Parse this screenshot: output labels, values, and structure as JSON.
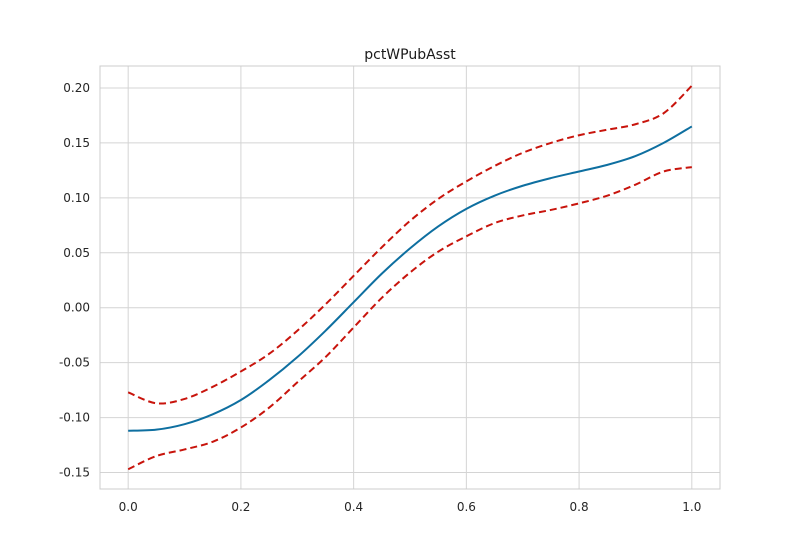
{
  "chart_data": {
    "type": "line",
    "title": "pctWPubAsst",
    "xlabel": "",
    "ylabel": "",
    "xlim": [
      -0.05,
      1.05
    ],
    "ylim": [
      -0.165,
      0.22
    ],
    "grid": true,
    "x_ticks": [
      "0.0",
      "0.2",
      "0.4",
      "0.6",
      "0.8",
      "1.0"
    ],
    "y_ticks": [
      "-0.15",
      "-0.10",
      "-0.05",
      "0.00",
      "0.05",
      "0.10",
      "0.15",
      "0.20"
    ],
    "x": [
      0.0,
      0.05,
      0.1,
      0.15,
      0.2,
      0.25,
      0.3,
      0.35,
      0.4,
      0.45,
      0.5,
      0.55,
      0.6,
      0.65,
      0.7,
      0.75,
      0.8,
      0.85,
      0.9,
      0.95,
      1.0
    ],
    "series": [
      {
        "style": "solid",
        "color": "#0e6fa0",
        "values": [
          -0.112,
          -0.111,
          -0.106,
          -0.097,
          -0.084,
          -0.066,
          -0.045,
          -0.021,
          0.005,
          0.031,
          0.054,
          0.074,
          0.09,
          0.102,
          0.111,
          0.118,
          0.124,
          0.13,
          0.138,
          0.15,
          0.165
        ]
      },
      {
        "style": "dashed",
        "color": "#c8140c",
        "values": [
          -0.077,
          -0.087,
          -0.083,
          -0.072,
          -0.058,
          -0.042,
          -0.021,
          0.003,
          0.029,
          0.055,
          0.079,
          0.099,
          0.115,
          0.129,
          0.141,
          0.15,
          0.157,
          0.162,
          0.167,
          0.177,
          0.202
        ]
      },
      {
        "style": "dashed",
        "color": "#c8140c",
        "values": [
          -0.147,
          -0.135,
          -0.129,
          -0.122,
          -0.109,
          -0.091,
          -0.068,
          -0.045,
          -0.018,
          0.009,
          0.032,
          0.051,
          0.065,
          0.077,
          0.084,
          0.089,
          0.095,
          0.102,
          0.112,
          0.124,
          0.128
        ]
      }
    ]
  }
}
